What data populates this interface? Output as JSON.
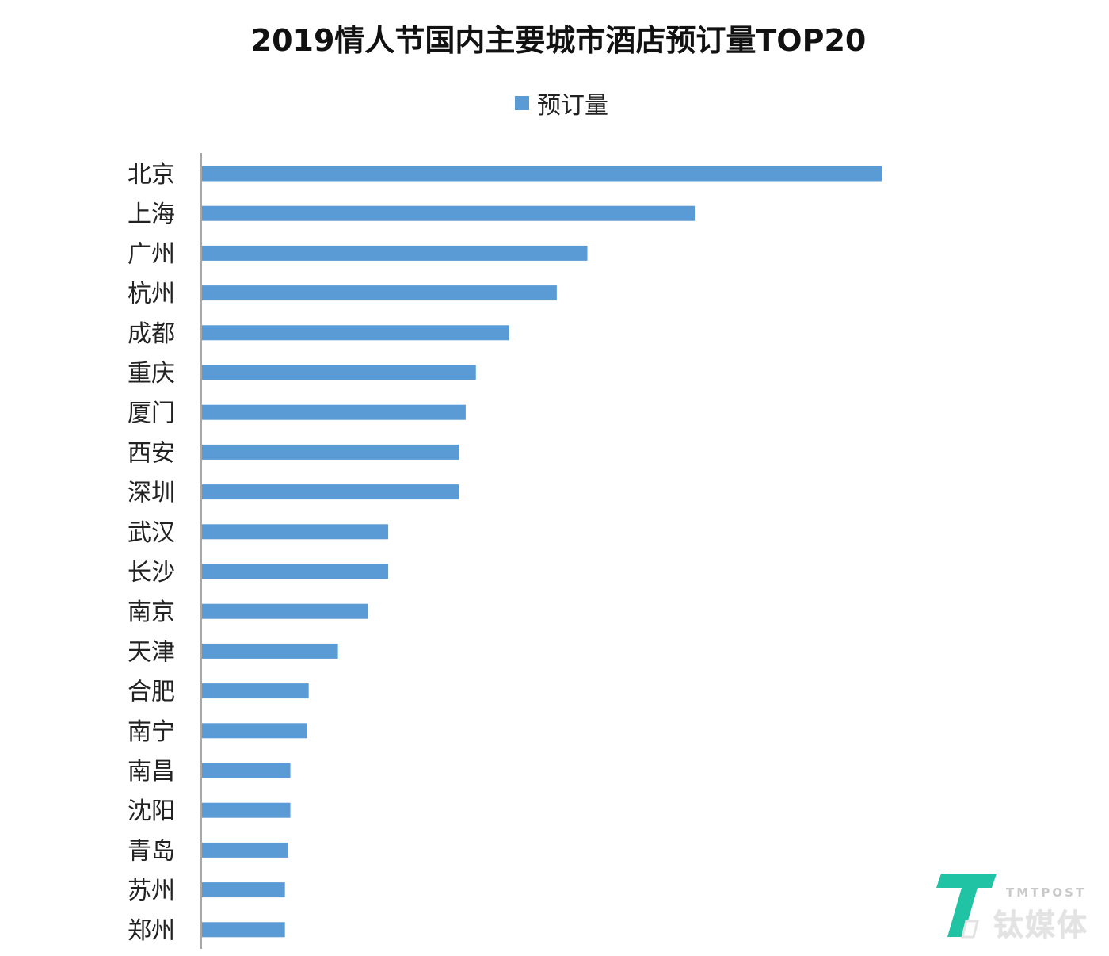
{
  "chart_data": {
    "type": "bar",
    "orientation": "horizontal",
    "title": "2019情人节国内主要城市酒店预订量TOP20",
    "xlabel": "",
    "ylabel": "",
    "legend_position": "top-center",
    "grid": false,
    "categories": [
      "北京",
      "上海",
      "广州",
      "杭州",
      "成都",
      "重庆",
      "厦门",
      "西安",
      "深圳",
      "武汉",
      "长沙",
      "南京",
      "天津",
      "合肥",
      "南宁",
      "南昌",
      "沈阳",
      "青岛",
      "苏州",
      "郑州"
    ],
    "series": [
      {
        "name": "预订量",
        "color": "#5b9bd5",
        "values": [
          100,
          72.5,
          56.7,
          52.2,
          45.2,
          40.3,
          38.8,
          37.8,
          37.8,
          27.4,
          27.4,
          24.4,
          20.0,
          15.7,
          15.5,
          13.0,
          13.0,
          12.7,
          12.2,
          12.2
        ]
      }
    ],
    "xlim": [
      0,
      100
    ]
  },
  "watermark": {
    "small_text": "TMTPOST",
    "big_text": "钛媒体",
    "icon": "tmtpost-logo-icon"
  }
}
